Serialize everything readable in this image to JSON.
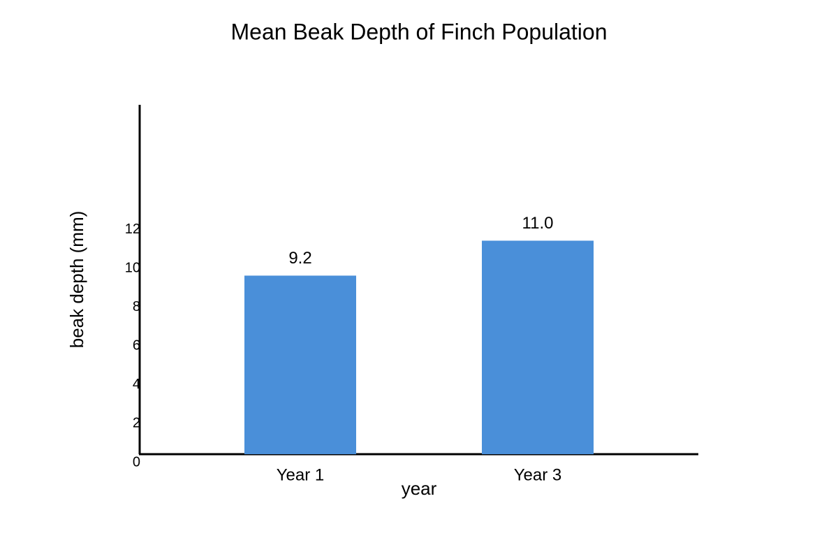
{
  "chart_data": {
    "type": "bar",
    "title": "Mean Beak Depth of Finch Population",
    "x_label": "year",
    "y_label": "beak depth (mm)",
    "categories": [
      "Year 1",
      "Year 3"
    ],
    "values": [
      9.2,
      11.0
    ],
    "value_labels": [
      "9.2",
      "11.0"
    ],
    "color": "#4a8fd9",
    "ylim": [
      0,
      18
    ],
    "yticks": [
      0,
      2,
      4,
      6,
      8,
      10,
      12
    ],
    "grid": false
  }
}
